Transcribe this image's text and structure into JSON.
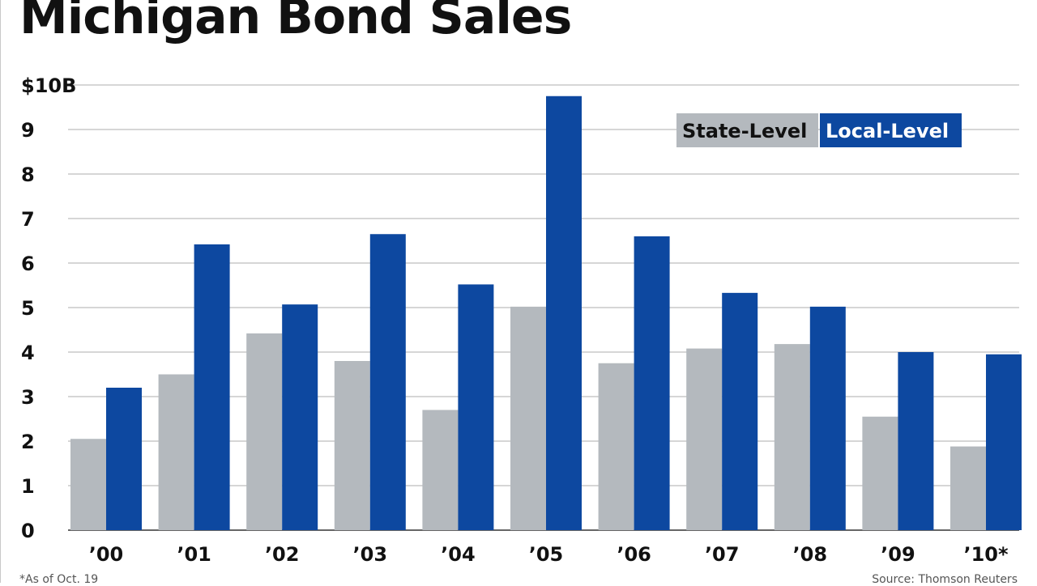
{
  "chart_data": {
    "type": "bar",
    "title": "Michigan Bond Sales",
    "categories": [
      "’00",
      "’01",
      "’02",
      "’03",
      "’04",
      "’05",
      "’06",
      "’07",
      "’08",
      "’09",
      "’10*"
    ],
    "series": [
      {
        "name": "State-Level",
        "color": "#b4b9be",
        "values": [
          2.05,
          3.5,
          4.42,
          3.8,
          2.7,
          5.02,
          3.75,
          4.08,
          4.18,
          2.55,
          1.88
        ]
      },
      {
        "name": "Local-Level",
        "color": "#0d48a0",
        "values": [
          3.2,
          6.42,
          5.07,
          6.65,
          5.52,
          9.75,
          6.6,
          5.33,
          5.02,
          4.0,
          3.95
        ]
      }
    ],
    "y_ticks": [
      "0",
      "1",
      "2",
      "3",
      "4",
      "5",
      "6",
      "7",
      "8",
      "9",
      "$10B"
    ],
    "ylim": [
      0,
      10
    ],
    "grid": true,
    "legend_position": "top-right",
    "footnote": "*As of Oct. 19",
    "source": "Source: Thomson Reuters"
  }
}
